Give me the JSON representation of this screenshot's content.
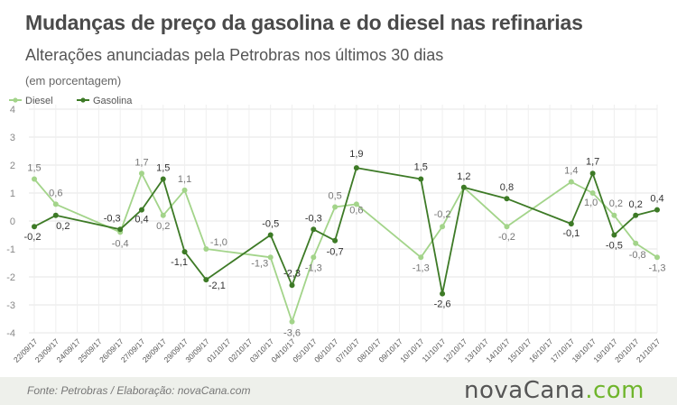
{
  "header": {
    "title": "Mudanças de preço da gasolina e do diesel nas refinarias",
    "subtitle": "Alterações anunciadas pela Petrobras nos últimos 30 dias",
    "unit": "(em porcentagem)"
  },
  "footer": {
    "source": "Fonte:  Petrobras   / Elaboração:  novaCana.com",
    "logo_main": "novaCana",
    "logo_suffix": ".com"
  },
  "chart_data": {
    "type": "line",
    "title": "Mudanças de preço da gasolina e do diesel nas refinarias",
    "subtitle": "Alterações anunciadas pela Petrobras nos últimos 30 dias",
    "ylabel": "(em porcentagem)",
    "ylim": [
      -4,
      4
    ],
    "yticks": [
      4,
      3,
      2,
      1,
      0,
      -1,
      -2,
      -3,
      -4
    ],
    "grid": true,
    "legend": "top-left",
    "x": [
      "22/09/17",
      "23/09/17",
      "24/09/17",
      "25/09/17",
      "26/09/17",
      "27/09/17",
      "28/09/17",
      "29/09/17",
      "30/09/17",
      "01/10/17",
      "02/10/17",
      "03/10/17",
      "04/10/17",
      "05/10/17",
      "06/10/17",
      "07/10/17",
      "08/10/17",
      "09/10/17",
      "10/10/17",
      "11/10/17",
      "12/10/17",
      "13/10/17",
      "14/10/17",
      "15/10/17",
      "16/10/17",
      "17/10/17",
      "18/10/17",
      "19/10/17",
      "20/10/17",
      "21/10/17"
    ],
    "series": [
      {
        "name": "Diesel",
        "color": "#a3d48a",
        "points": [
          {
            "x": "22/09/17",
            "y": 1.5
          },
          {
            "x": "23/09/17",
            "y": 0.6
          },
          {
            "x": "26/09/17",
            "y": -0.4
          },
          {
            "x": "27/09/17",
            "y": 1.7
          },
          {
            "x": "28/09/17",
            "y": 0.2
          },
          {
            "x": "29/09/17",
            "y": 1.1
          },
          {
            "x": "30/09/17",
            "y": -1.0
          },
          {
            "x": "03/10/17",
            "y": -1.3
          },
          {
            "x": "04/10/17",
            "y": -3.6
          },
          {
            "x": "05/10/17",
            "y": -1.3
          },
          {
            "x": "06/10/17",
            "y": 0.5
          },
          {
            "x": "07/10/17",
            "y": 0.6
          },
          {
            "x": "10/10/17",
            "y": -1.3
          },
          {
            "x": "11/10/17",
            "y": -0.2
          },
          {
            "x": "12/10/17",
            "y": 1.2
          },
          {
            "x": "14/10/17",
            "y": -0.2
          },
          {
            "x": "17/10/17",
            "y": 1.4
          },
          {
            "x": "18/10/17",
            "y": 1.0
          },
          {
            "x": "19/10/17",
            "y": 0.2
          },
          {
            "x": "20/10/17",
            "y": -0.8
          },
          {
            "x": "21/10/17",
            "y": -1.3
          }
        ]
      },
      {
        "name": "Gasolina",
        "color": "#3d7a26",
        "points": [
          {
            "x": "22/09/17",
            "y": -0.2
          },
          {
            "x": "23/09/17",
            "y": 0.2
          },
          {
            "x": "26/09/17",
            "y": -0.3
          },
          {
            "x": "27/09/17",
            "y": 0.4
          },
          {
            "x": "28/09/17",
            "y": 1.5
          },
          {
            "x": "29/09/17",
            "y": -1.1
          },
          {
            "x": "30/09/17",
            "y": -2.1
          },
          {
            "x": "03/10/17",
            "y": -0.5
          },
          {
            "x": "04/10/17",
            "y": -2.3
          },
          {
            "x": "05/10/17",
            "y": -0.3
          },
          {
            "x": "06/10/17",
            "y": -0.7
          },
          {
            "x": "07/10/17",
            "y": 1.9
          },
          {
            "x": "10/10/17",
            "y": 1.5
          },
          {
            "x": "11/10/17",
            "y": -2.6
          },
          {
            "x": "12/10/17",
            "y": 1.2
          },
          {
            "x": "14/10/17",
            "y": 0.8
          },
          {
            "x": "17/10/17",
            "y": -0.1
          },
          {
            "x": "18/10/17",
            "y": 1.7
          },
          {
            "x": "19/10/17",
            "y": -0.5
          },
          {
            "x": "20/10/17",
            "y": 0.2
          },
          {
            "x": "21/10/17",
            "y": 0.4
          }
        ]
      }
    ],
    "data_labels": {
      "Diesel": [
        "1,5",
        "0,6",
        "-0,4",
        "1,7",
        "0,2",
        "1,1",
        "-1,0",
        "-1,3",
        "-3,6",
        "-1,3",
        "0,5",
        "0,6",
        "-1,3",
        "-0,2",
        "",
        "-0,2",
        "1,4",
        "1,0",
        "0,2",
        "-0,8",
        "-1,3"
      ],
      "Gasolina": [
        "-0,2",
        "0,2",
        "-0,3",
        "0,4",
        "1,5",
        "-1,1",
        "-2,1",
        "-0,5",
        "-2,3",
        "-0,3",
        "-0,7",
        "1,9",
        "1,5",
        "-2,6",
        "1,2",
        "0,8",
        "-0,1",
        "1,7",
        "-0,5",
        "0,2",
        "0,4"
      ]
    },
    "tick_labels_y": [
      "4",
      "3",
      "2",
      "1",
      "0",
      "-1",
      "-2",
      "-3",
      "-4"
    ]
  }
}
